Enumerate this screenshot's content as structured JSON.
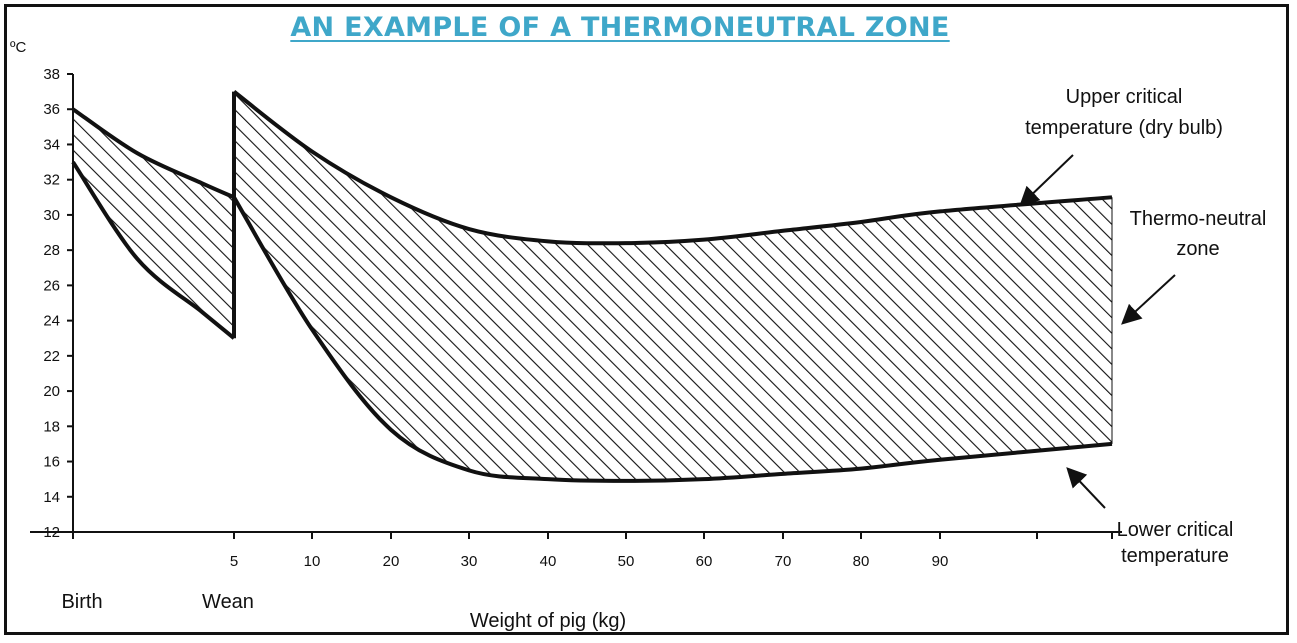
{
  "colors": {
    "title": "#3fa7c9",
    "ink": "#111111",
    "background": "#ffffff"
  },
  "chart_data": {
    "type": "area",
    "title": "AN EXAMPLE OF A THERMONEUTRAL ZONE",
    "ylabel": "ºC",
    "xlabel": "Weight of pig (kg)",
    "ylim": [
      12,
      38
    ],
    "yticks": [
      12,
      14,
      16,
      18,
      20,
      22,
      24,
      26,
      28,
      30,
      32,
      34,
      36,
      38
    ],
    "xticks": [
      {
        "x": 5,
        "label": "5"
      },
      {
        "x": 10,
        "label": "10"
      },
      {
        "x": 20,
        "label": "20"
      },
      {
        "x": 30,
        "label": "30"
      },
      {
        "x": 40,
        "label": "40"
      },
      {
        "x": 50,
        "label": "50"
      },
      {
        "x": 60,
        "label": "60"
      },
      {
        "x": 70,
        "label": "70"
      },
      {
        "x": 80,
        "label": "80"
      },
      {
        "x": 90,
        "label": "90"
      }
    ],
    "category_labels": [
      {
        "label": "Birth",
        "x": 0
      },
      {
        "label": "Wean",
        "x": 5
      }
    ],
    "series": [
      {
        "name": "Upper critical temperature (dry bulb)",
        "segments": [
          {
            "x": [
              0,
              2,
              4,
              5
            ],
            "y": [
              36,
              33.5,
              31.8,
              31
            ]
          },
          {
            "x": [
              5,
              10,
              20,
              30,
              40,
              50,
              60,
              70,
              80,
              90,
              100
            ],
            "y": [
              37,
              33.6,
              31,
              29.2,
              28.5,
              28.4,
              28.6,
              29.1,
              29.6,
              30.2,
              31
            ]
          }
        ]
      },
      {
        "name": "Lower critical temperature",
        "segments": [
          {
            "x": [
              0,
              2,
              4,
              5
            ],
            "y": [
              33,
              27.5,
              24.5,
              23
            ]
          },
          {
            "x": [
              5,
              10,
              20,
              30,
              40,
              50,
              60,
              70,
              80,
              90,
              100
            ],
            "y": [
              31,
              23.5,
              17.8,
              15.5,
              15,
              14.9,
              15,
              15.3,
              15.6,
              16.1,
              17
            ]
          }
        ]
      }
    ],
    "shaded_region": "Thermo-neutral zone",
    "annotations": [
      {
        "lines": [
          "Upper critical",
          "temperature (dry bulb)"
        ],
        "target": "upper"
      },
      {
        "lines": [
          "Thermo-neutral",
          "zone"
        ],
        "target": "zone"
      },
      {
        "lines": [
          "Lower critical",
          "temperature"
        ],
        "target": "lower"
      }
    ]
  }
}
